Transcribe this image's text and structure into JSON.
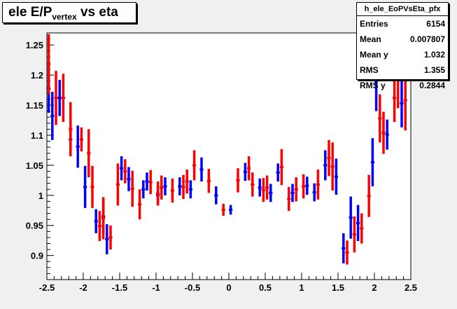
{
  "title": {
    "main": "ele E/P",
    "sub": "vertex",
    "rest": " vs eta"
  },
  "stats": {
    "name": "h_ele_EoPVsEta_pfx",
    "rows": [
      {
        "key": "Entries",
        "value": "6154"
      },
      {
        "key": "Mean",
        "value": "0.007807"
      },
      {
        "key": "Mean y",
        "value": "1.032"
      },
      {
        "key": "RMS",
        "value": "1.355"
      },
      {
        "key": "RMS y",
        "value": "0.2844"
      }
    ]
  },
  "chart_data": {
    "type": "scatter",
    "xlim": [
      -2.5,
      2.5
    ],
    "ylim": [
      0.86,
      1.27
    ],
    "xticks": [
      "-2.5",
      "-2",
      "-1.5",
      "-1",
      "-0.5",
      "0",
      "0.5",
      "1",
      "1.5",
      "2",
      "2.5"
    ],
    "yticks": [
      "0.9",
      "0.95",
      "1",
      "1.05",
      "1.1",
      "1.15",
      "1.2",
      "1.25"
    ],
    "grid": false,
    "series": [
      {
        "color": "#0000ff",
        "points": [
          {
            "x": -2.475,
            "y": 1.177,
            "err": 0.04
          },
          {
            "x": -2.425,
            "y": 1.132,
            "err": 0.04
          },
          {
            "x": -2.325,
            "y": 1.162,
            "err": 0.03
          },
          {
            "x": -2.175,
            "y": 1.093,
            "err": 0.015
          },
          {
            "x": -2.075,
            "y": 1.081,
            "err": 0.035
          },
          {
            "x": -1.975,
            "y": 1.014,
            "err": 0.035
          },
          {
            "x": -1.825,
            "y": 0.957,
            "err": 0.02
          },
          {
            "x": -1.725,
            "y": 0.965,
            "err": 0.03
          },
          {
            "x": -1.675,
            "y": 0.927,
            "err": 0.025
          },
          {
            "x": -1.475,
            "y": 1.045,
            "err": 0.02
          },
          {
            "x": -1.375,
            "y": 1.027,
            "err": 0.02
          },
          {
            "x": -1.175,
            "y": 1.01,
            "err": 0.015
          },
          {
            "x": -1.125,
            "y": 1.023,
            "err": 0.015
          },
          {
            "x": -0.975,
            "y": 1.0,
            "err": 0.015
          },
          {
            "x": -0.875,
            "y": 1.015,
            "err": 0.015
          },
          {
            "x": -0.675,
            "y": 1.015,
            "err": 0.015
          },
          {
            "x": -0.525,
            "y": 1.01,
            "err": 0.015
          },
          {
            "x": -0.375,
            "y": 1.043,
            "err": 0.02
          },
          {
            "x": -0.175,
            "y": 1.0,
            "err": 0.015
          },
          {
            "x": 0.025,
            "y": 0.976,
            "err": 0.008
          },
          {
            "x": 0.225,
            "y": 1.039,
            "err": 0.015
          },
          {
            "x": 0.425,
            "y": 1.013,
            "err": 0.015
          },
          {
            "x": 0.575,
            "y": 1.004,
            "err": 0.015
          },
          {
            "x": 0.675,
            "y": 1.038,
            "err": 0.015
          },
          {
            "x": 0.875,
            "y": 1.004,
            "err": 0.015
          },
          {
            "x": 1.075,
            "y": 1.016,
            "err": 0.015
          },
          {
            "x": 1.175,
            "y": 1.005,
            "err": 0.015
          },
          {
            "x": 1.325,
            "y": 1.05,
            "err": 0.025
          },
          {
            "x": 1.475,
            "y": 1.031,
            "err": 0.03
          },
          {
            "x": 1.575,
            "y": 0.912,
            "err": 0.025
          },
          {
            "x": 1.675,
            "y": 0.963,
            "err": 0.035
          },
          {
            "x": 1.775,
            "y": 0.954,
            "err": 0.03
          },
          {
            "x": 1.975,
            "y": 1.055,
            "err": 0.04
          },
          {
            "x": 2.025,
            "y": 1.19,
            "err": 0.05
          },
          {
            "x": 2.175,
            "y": 1.101,
            "err": 0.025
          },
          {
            "x": 2.375,
            "y": 1.153,
            "err": 0.04
          }
        ]
      },
      {
        "color": "#ff0000",
        "points": [
          {
            "x": -2.475,
            "y": 1.218,
            "err": 0.05
          },
          {
            "x": -2.375,
            "y": 1.162,
            "err": 0.045
          },
          {
            "x": -2.275,
            "y": 1.162,
            "err": 0.04
          },
          {
            "x": -2.175,
            "y": 1.11,
            "err": 0.045
          },
          {
            "x": -2.025,
            "y": 1.093,
            "err": 0.02
          },
          {
            "x": -1.925,
            "y": 1.07,
            "err": 0.04
          },
          {
            "x": -1.875,
            "y": 1.014,
            "err": 0.035
          },
          {
            "x": -1.775,
            "y": 0.949,
            "err": 0.025
          },
          {
            "x": -1.725,
            "y": 0.962,
            "err": 0.035
          },
          {
            "x": -1.625,
            "y": 0.93,
            "err": 0.02
          },
          {
            "x": -1.525,
            "y": 1.018,
            "err": 0.035
          },
          {
            "x": -1.425,
            "y": 1.04,
            "err": 0.02
          },
          {
            "x": -1.325,
            "y": 1.011,
            "err": 0.03
          },
          {
            "x": -1.225,
            "y": 0.985,
            "err": 0.025
          },
          {
            "x": -1.075,
            "y": 1.022,
            "err": 0.02
          },
          {
            "x": -0.975,
            "y": 1.003,
            "err": 0.02
          },
          {
            "x": -0.925,
            "y": 1.013,
            "err": 0.02
          },
          {
            "x": -0.775,
            "y": 1.008,
            "err": 0.02
          },
          {
            "x": -0.625,
            "y": 1.014,
            "err": 0.02
          },
          {
            "x": -0.575,
            "y": 1.023,
            "err": 0.02
          },
          {
            "x": -0.475,
            "y": 1.05,
            "err": 0.025
          },
          {
            "x": -0.275,
            "y": 1.024,
            "err": 0.02
          },
          {
            "x": -0.075,
            "y": 0.976,
            "err": 0.01
          },
          {
            "x": 0.125,
            "y": 1.025,
            "err": 0.02
          },
          {
            "x": 0.275,
            "y": 1.045,
            "err": 0.02
          },
          {
            "x": 0.325,
            "y": 1.018,
            "err": 0.02
          },
          {
            "x": 0.475,
            "y": 1.009,
            "err": 0.02
          },
          {
            "x": 0.525,
            "y": 1.013,
            "err": 0.02
          },
          {
            "x": 0.725,
            "y": 1.047,
            "err": 0.03
          },
          {
            "x": 0.825,
            "y": 0.994,
            "err": 0.02
          },
          {
            "x": 0.925,
            "y": 1.01,
            "err": 0.02
          },
          {
            "x": 1.025,
            "y": 1.015,
            "err": 0.02
          },
          {
            "x": 1.225,
            "y": 1.018,
            "err": 0.025
          },
          {
            "x": 1.375,
            "y": 1.062,
            "err": 0.03
          },
          {
            "x": 1.425,
            "y": 1.048,
            "err": 0.04
          },
          {
            "x": 1.625,
            "y": 0.905,
            "err": 0.02
          },
          {
            "x": 1.725,
            "y": 0.935,
            "err": 0.03
          },
          {
            "x": 1.825,
            "y": 0.945,
            "err": 0.025
          },
          {
            "x": 1.925,
            "y": 0.999,
            "err": 0.035
          },
          {
            "x": 2.075,
            "y": 1.128,
            "err": 0.04
          },
          {
            "x": 2.125,
            "y": 1.104,
            "err": 0.035
          },
          {
            "x": 2.275,
            "y": 1.162,
            "err": 0.04
          },
          {
            "x": 2.325,
            "y": 1.205,
            "err": 0.06
          },
          {
            "x": 2.425,
            "y": 1.158,
            "err": 0.05
          }
        ]
      }
    ]
  }
}
